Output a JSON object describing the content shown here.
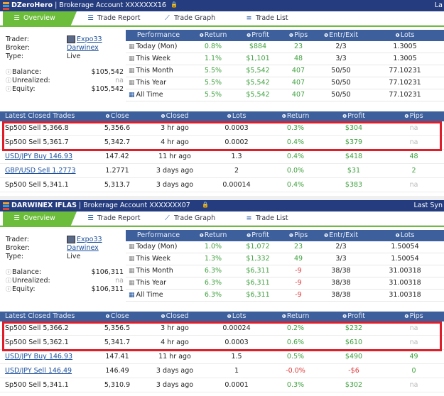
{
  "tabs": [
    {
      "label": "Overview",
      "icon": "list-icon"
    },
    {
      "label": "Trade Report",
      "icon": "list-icon"
    },
    {
      "label": "Trade Graph",
      "icon": "chart-icon"
    },
    {
      "label": "Trade List",
      "icon": "rows-icon"
    }
  ],
  "account_labels": {
    "trader": "Trader:",
    "broker": "Broker:",
    "type": "Type:",
    "balance": "Balance:",
    "unrealized": "Unrealized:",
    "equity": "Equity:"
  },
  "perf_headers": [
    "Performance",
    "Return",
    "Profit",
    "Pips",
    "Entr/Exit",
    "Lots"
  ],
  "trade_headers": [
    "Latest Closed Trades",
    "Close",
    "Closed",
    "Lots",
    "Return",
    "Profit",
    "Pips"
  ],
  "panels": [
    {
      "title_brand": "DZeroHero",
      "title_rest": " | Brokerage Account XXXXXXX16",
      "right_text": "La",
      "trader": "Expo33",
      "broker": "Darwinex",
      "type": "Live",
      "balance": "$105,542",
      "unrealized": "na",
      "equity": "$105,542",
      "performance": [
        {
          "period": "Today (Mon)",
          "return": "0.8%",
          "profit": "$884",
          "pips": "23",
          "entr_exit": "2/3",
          "lots": "1.3005"
        },
        {
          "period": "This Week",
          "return": "1.1%",
          "profit": "$1,101",
          "pips": "48",
          "entr_exit": "3/3",
          "lots": "1.3005"
        },
        {
          "period": "This Month",
          "return": "5.5%",
          "profit": "$5,542",
          "pips": "407",
          "entr_exit": "50/50",
          "lots": "77.10231"
        },
        {
          "period": "This Year",
          "return": "5.5%",
          "profit": "$5,542",
          "pips": "407",
          "entr_exit": "50/50",
          "lots": "77.10231"
        },
        {
          "period": "All Time",
          "return": "5.5%",
          "profit": "$5,542",
          "pips": "407",
          "entr_exit": "50/50",
          "lots": "77.10231"
        }
      ],
      "trades": [
        {
          "trade": "Sp500 Sell 5,366.8",
          "close": "5,356.6",
          "closed": "3 hr ago",
          "lots": "0.0003",
          "return": "0.3%",
          "profit": "$304",
          "pips": "na",
          "link": false
        },
        {
          "trade": "Sp500 Sell 5,361.7",
          "close": "5,342.7",
          "closed": "4 hr ago",
          "lots": "0.0002",
          "return": "0.4%",
          "profit": "$379",
          "pips": "na",
          "link": false
        },
        {
          "trade": "USD/JPY Buy 146.93",
          "close": "147.42",
          "closed": "11 hr ago",
          "lots": "1.3",
          "return": "0.4%",
          "profit": "$418",
          "pips": "48",
          "link": true
        },
        {
          "trade": "GBP/USD Sell 1.2773",
          "close": "1.2771",
          "closed": "3 days ago",
          "lots": "2",
          "return": "0.0%",
          "profit": "$31",
          "pips": "2",
          "link": true
        },
        {
          "trade": "Sp500 Sell 5,341.1",
          "close": "5,313.7",
          "closed": "3 days ago",
          "lots": "0.00014",
          "return": "0.4%",
          "profit": "$383",
          "pips": "na",
          "link": false
        }
      ]
    },
    {
      "title_brand": "DARWINEX IFLAS",
      "title_rest": " | Brokerage Account XXXXXXX07",
      "right_text": "Last Syn",
      "trader": "Expo33",
      "broker": "Darwinex",
      "type": "Live",
      "balance": "$106,311",
      "unrealized": "na",
      "equity": "$106,311",
      "performance": [
        {
          "period": "Today (Mon)",
          "return": "1.0%",
          "profit": "$1,072",
          "pips": "23",
          "entr_exit": "2/3",
          "lots": "1.50054"
        },
        {
          "period": "This Week",
          "return": "1.3%",
          "profit": "$1,332",
          "pips": "49",
          "entr_exit": "3/3",
          "lots": "1.50054"
        },
        {
          "period": "This Month",
          "return": "6.3%",
          "profit": "$6,311",
          "pips": "-9",
          "entr_exit": "38/38",
          "lots": "31.00318"
        },
        {
          "period": "This Year",
          "return": "6.3%",
          "profit": "$6,311",
          "pips": "-9",
          "entr_exit": "38/38",
          "lots": "31.00318"
        },
        {
          "period": "All Time",
          "return": "6.3%",
          "profit": "$6,311",
          "pips": "-9",
          "entr_exit": "38/38",
          "lots": "31.00318"
        }
      ],
      "trades": [
        {
          "trade": "Sp500 Sell 5,366.2",
          "close": "5,356.5",
          "closed": "3 hr ago",
          "lots": "0.00024",
          "return": "0.2%",
          "profit": "$232",
          "pips": "na",
          "link": false
        },
        {
          "trade": "Sp500 Sell 5,362.1",
          "close": "5,341.7",
          "closed": "4 hr ago",
          "lots": "0.0003",
          "return": "0.6%",
          "profit": "$610",
          "pips": "na",
          "link": false
        },
        {
          "trade": "USD/JPY Buy 146.93",
          "close": "147.41",
          "closed": "11 hr ago",
          "lots": "1.5",
          "return": "0.5%",
          "profit": "$490",
          "pips": "49",
          "link": true
        },
        {
          "trade": "USD/JPY Sell 146.49",
          "close": "146.49",
          "closed": "3 days ago",
          "lots": "1",
          "return": "-0.0%",
          "profit": "-$6",
          "pips": "0",
          "link": true
        },
        {
          "trade": "Sp500 Sell 5,341.1",
          "close": "5,310.9",
          "closed": "3 days ago",
          "lots": "0.0001",
          "return": "0.3%",
          "profit": "$302",
          "pips": "na",
          "link": false
        }
      ]
    }
  ],
  "colors": {
    "header_blue": "#253d7f",
    "table_header": "#3d5f9c",
    "accent_green": "#6cbd3b",
    "positive": "#3fa13f",
    "negative": "#e03a3a",
    "highlight": "#e01e2a"
  }
}
